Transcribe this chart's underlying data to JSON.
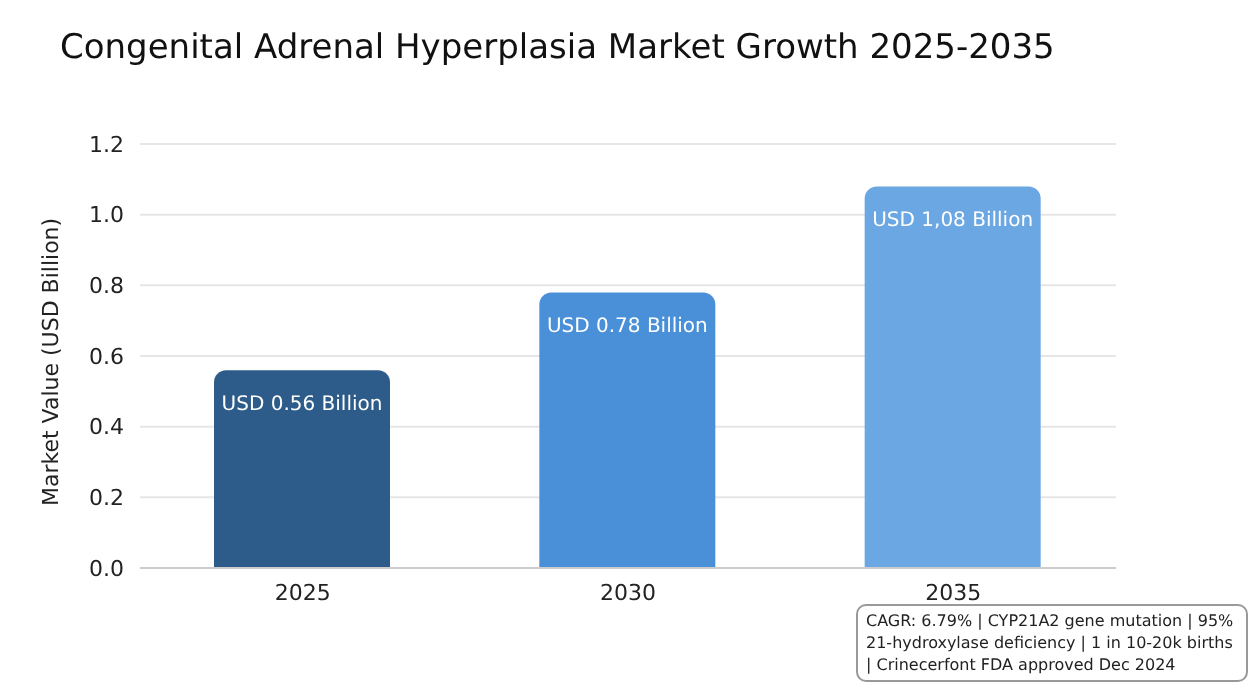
{
  "chart_data": {
    "type": "bar",
    "title": "Congenital Adrenal Hyperplasia Market Growth 2025-2035",
    "ylabel": "Market Value (USD Billion)",
    "categories": [
      "2025",
      "2030",
      "2035"
    ],
    "values": [
      0.56,
      0.78,
      1.08
    ],
    "colors": [
      "#2e5c8a",
      "#4a90d9",
      "#6aa7e3"
    ],
    "value_labels": [
      "USD 0.56 Billion",
      "USD 0.78 Billion",
      "USD 1,08 Billion"
    ],
    "ylim": [
      0,
      1.2
    ],
    "yticks": [
      {
        "value": 0,
        "label": "0.0"
      },
      0.2,
      0.4,
      0.6,
      0.8,
      {
        "value": 1,
        "label": "1.0"
      },
      1.2
    ],
    "grid": "y",
    "legend": false,
    "annotations": [
      "CAGR: 6.79% | CYP21A2 gene mutation | 95% 21-hydroxylase deficiency | 1 in 10-20k births | Crinecerfont FDA approved Dec 2024"
    ]
  }
}
